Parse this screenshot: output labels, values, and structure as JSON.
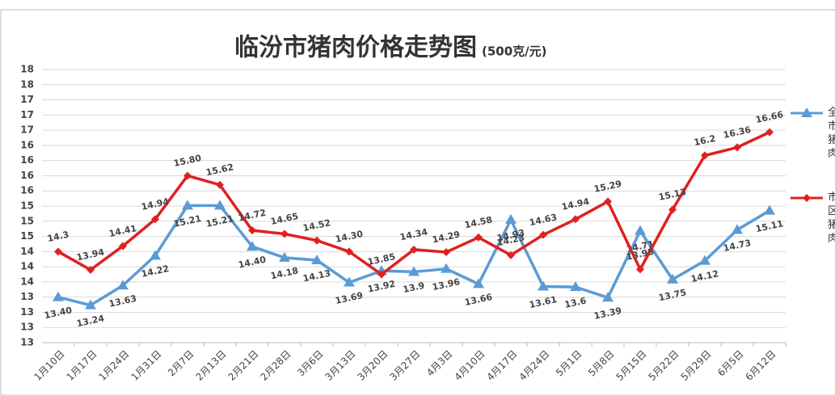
{
  "chart_data": {
    "type": "line",
    "title": "临汾市猪肉价格走势图",
    "subtitle": "(500克/元)",
    "categories": [
      "1月10日",
      "1月17日",
      "1月24日",
      "1月31日",
      "2月7日",
      "2月13日",
      "2月21日",
      "2月28日",
      "3月6日",
      "3月13日",
      "3月20日",
      "3月27日",
      "4月3日",
      "4月10日",
      "4月17日",
      "4月24日",
      "5月1日",
      "5月8日",
      "5月15日",
      "5月22日",
      "5月29日",
      "6月5日",
      "6月12日"
    ],
    "series": [
      {
        "name": "全市猪肉",
        "color": "#5b9bd5",
        "marker": "triangle",
        "values": [
          13.4,
          13.24,
          13.63,
          14.22,
          15.21,
          15.21,
          14.4,
          14.18,
          14.13,
          13.69,
          13.92,
          13.9,
          13.96,
          13.66,
          14.93,
          13.61,
          13.6,
          13.39,
          14.71,
          13.75,
          14.12,
          14.73,
          15.11
        ],
        "value_labels": [
          "13.40",
          "13.24",
          "13.63",
          "14.22",
          "15.21",
          "15.21",
          "14.40",
          "14.18",
          "14.13",
          "13.69",
          "13.92",
          "13.9",
          "13.96",
          "13.66",
          "14.93",
          "13.61",
          "13.6",
          "13.39",
          "14.71",
          "13.75",
          "14.12",
          "14.73",
          "15.11"
        ]
      },
      {
        "name": "市区猪肉",
        "color": "#e02020",
        "marker": "diamond",
        "values": [
          14.3,
          13.94,
          14.41,
          14.94,
          15.8,
          15.62,
          14.72,
          14.65,
          14.52,
          14.3,
          13.85,
          14.34,
          14.29,
          14.58,
          14.23,
          14.63,
          14.94,
          15.29,
          13.95,
          15.13,
          16.2,
          16.36,
          16.66
        ],
        "value_labels": [
          "14.3",
          "13.94",
          "14.41",
          "14.94",
          "15.80",
          "15.62",
          "14.72",
          "14.65",
          "14.52",
          "14.30",
          "13.85",
          "14.34",
          "14.29",
          "14.58",
          "14.23",
          "14.63",
          "14.94",
          "15.29",
          "13.95",
          "15.13",
          "16.2",
          "16.36",
          "16.66"
        ]
      }
    ],
    "ylim": [
      12.5,
      17.9
    ],
    "yticks": [
      {
        "value": 12.5,
        "label": "13"
      },
      {
        "value": 12.8,
        "label": "13"
      },
      {
        "value": 13.1,
        "label": "13"
      },
      {
        "value": 13.4,
        "label": "13"
      },
      {
        "value": 13.7,
        "label": "14"
      },
      {
        "value": 14.0,
        "label": "14"
      },
      {
        "value": 14.3,
        "label": "14"
      },
      {
        "value": 14.6,
        "label": "15"
      },
      {
        "value": 14.9,
        "label": "15"
      },
      {
        "value": 15.2,
        "label": "15"
      },
      {
        "value": 15.5,
        "label": "16"
      },
      {
        "value": 15.8,
        "label": "16"
      },
      {
        "value": 16.1,
        "label": "16"
      },
      {
        "value": 16.4,
        "label": "16"
      },
      {
        "value": 16.7,
        "label": "17"
      },
      {
        "value": 17.0,
        "label": "17"
      },
      {
        "value": 17.3,
        "label": "17"
      },
      {
        "value": 17.6,
        "label": "18"
      },
      {
        "value": 17.9,
        "label": "18"
      }
    ],
    "grid": true
  }
}
